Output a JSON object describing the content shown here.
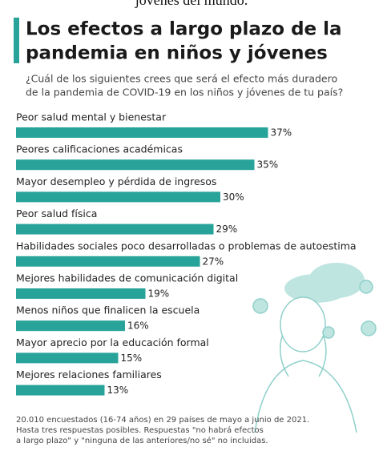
{
  "chart_data": {
    "type": "bar",
    "pretitle": "jóvenes del mundo.",
    "title_lines": [
      "Los efectos a largo plazo de la",
      "pandemia en niños y jóvenes"
    ],
    "subtitle_lines": [
      "¿Cuál de los siguientes crees que será el efecto más duradero",
      "de la pandemia de COVID-19 en los niños y jóvenes de tu país?"
    ],
    "categories": [
      "Peor salud mental y bienestar",
      "Peores calificaciones académicas",
      "Mayor desempleo y pérdida de ingresos",
      "Peor salud física",
      "Habilidades sociales poco desarrolladas o problemas de autoestima",
      "Mejores habilidades de comunicación digital",
      "Menos niños que finalicen la escuela",
      "Mayor aprecio por la educación formal",
      "Mejores relaciones familiares"
    ],
    "values": [
      37,
      35,
      30,
      29,
      27,
      19,
      16,
      15,
      13
    ],
    "value_labels": [
      "37%",
      "35%",
      "30%",
      "29%",
      "27%",
      "19%",
      "16%",
      "15%",
      "13%"
    ],
    "color": "#28a39a",
    "footnote": [
      "20.010 encuestados (16-74 años) en 29 países de mayo a junio de 2021.",
      "Hasta tres respuestas posibles. Respuestas \"no habrá efectos",
      "a largo plazo\" y \"ninguna de las anteriores/no sé\" no incluidas."
    ]
  }
}
